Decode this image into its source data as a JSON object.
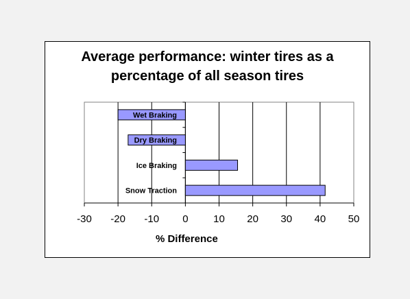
{
  "chart_data": {
    "type": "bar",
    "orientation": "horizontal",
    "title_lines": [
      "Average performance: winter tires as a",
      "percentage of all season tires"
    ],
    "xlabel": "% Difference",
    "ylabel": "",
    "categories": [
      "Wet Braking",
      "Dry Braking",
      "Ice Braking",
      "Snow Traction"
    ],
    "values": [
      -20,
      -17,
      15.5,
      41.5
    ],
    "xlim": [
      -30,
      50
    ],
    "xticks": [
      -30,
      -20,
      -10,
      0,
      10,
      20,
      30,
      40,
      50
    ],
    "grid": "vertical",
    "legend": "none",
    "bar_color": "#9999ff",
    "plot_border_color": "#808080"
  }
}
